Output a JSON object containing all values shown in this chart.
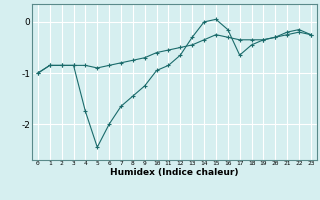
{
  "title": "",
  "xlabel": "Humidex (Indice chaleur)",
  "ylabel": "",
  "bg_color": "#d6eff0",
  "grid_color": "#ffffff",
  "line_color": "#1a6b6b",
  "x_ticks": [
    0,
    1,
    2,
    3,
    4,
    5,
    6,
    7,
    8,
    9,
    10,
    11,
    12,
    13,
    14,
    15,
    16,
    17,
    18,
    19,
    20,
    21,
    22,
    23
  ],
  "ylim": [
    -2.7,
    0.35
  ],
  "xlim": [
    -0.5,
    23.5
  ],
  "series1_x": [
    0,
    1,
    2,
    3,
    4,
    5,
    6,
    7,
    8,
    9,
    10,
    11,
    12,
    13,
    14,
    15,
    16,
    17,
    18,
    19,
    20,
    21,
    22,
    23
  ],
  "series1_y": [
    -1.0,
    -0.85,
    -0.85,
    -0.85,
    -0.85,
    -0.9,
    -0.85,
    -0.8,
    -0.75,
    -0.7,
    -0.6,
    -0.55,
    -0.5,
    -0.45,
    -0.35,
    -0.25,
    -0.3,
    -0.35,
    -0.35,
    -0.35,
    -0.3,
    -0.25,
    -0.2,
    -0.25
  ],
  "series2_x": [
    0,
    1,
    2,
    3,
    4,
    5,
    6,
    7,
    8,
    9,
    10,
    11,
    12,
    13,
    14,
    15,
    16,
    17,
    18,
    19,
    20,
    21,
    22,
    23
  ],
  "series2_y": [
    -1.0,
    -0.85,
    -0.85,
    -0.85,
    -1.75,
    -2.45,
    -2.0,
    -1.65,
    -1.45,
    -1.25,
    -0.95,
    -0.85,
    -0.65,
    -0.3,
    0.0,
    0.05,
    -0.15,
    -0.65,
    -0.45,
    -0.35,
    -0.3,
    -0.2,
    -0.15,
    -0.25
  ],
  "yticks": [
    0,
    -1,
    -2
  ],
  "marker": "+"
}
